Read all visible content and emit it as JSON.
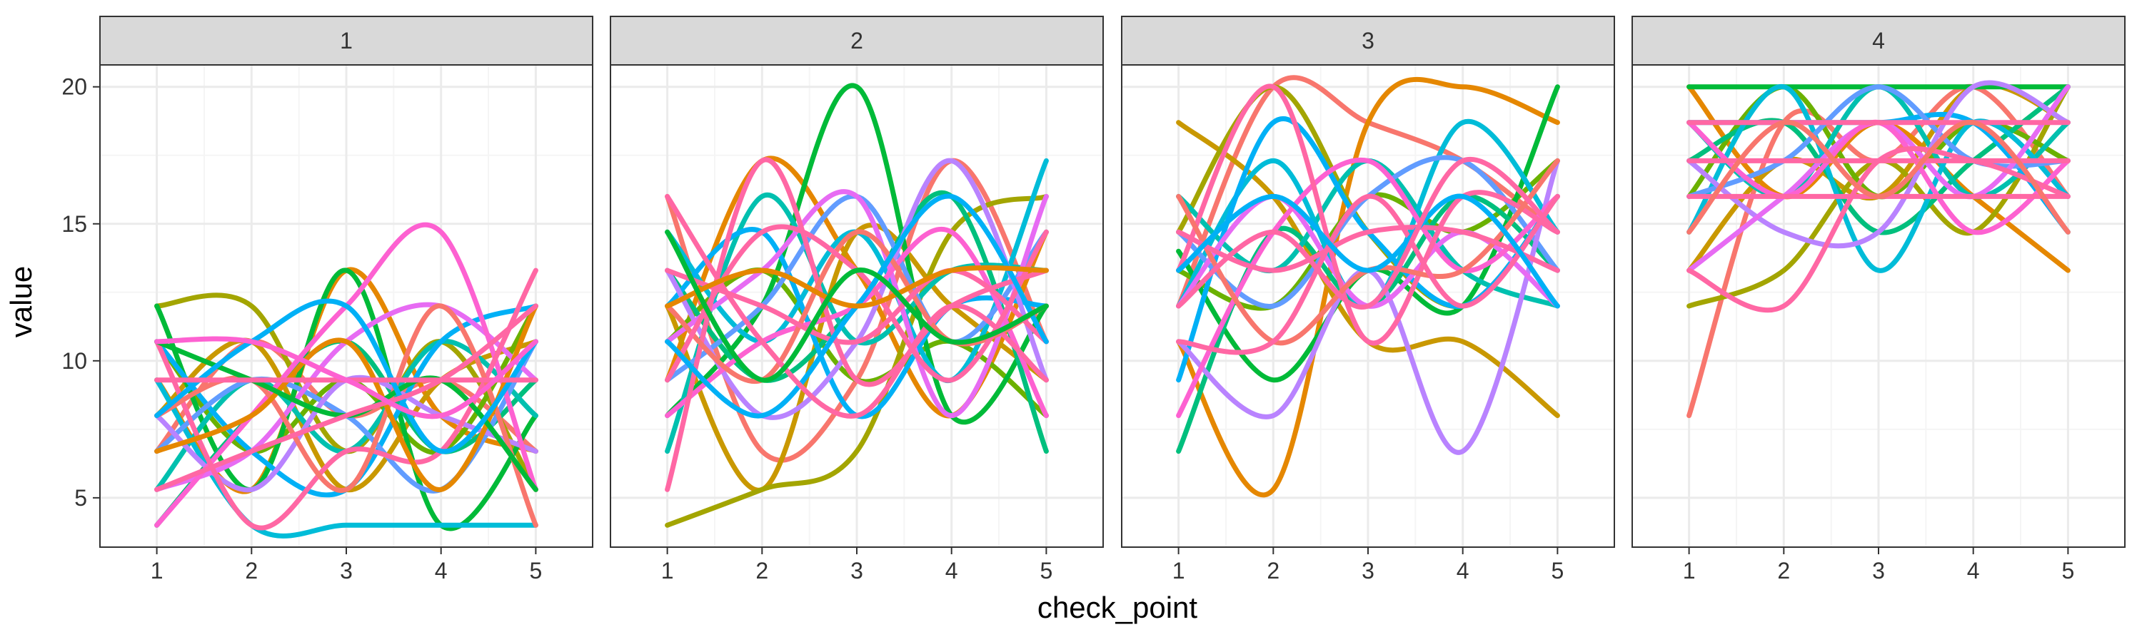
{
  "chart_data": {
    "type": "line",
    "facet_by": "group",
    "panels": [
      {
        "label": "1",
        "x": [
          1,
          2,
          3,
          4,
          5
        ],
        "series": [
          {
            "color": "#F8766D",
            "values": [
              6.7,
              10.7,
              8.0,
              9.3,
              6.7
            ]
          },
          {
            "color": "#E58700",
            "values": [
              9.3,
              5.3,
              13.3,
              8.0,
              6.7
            ]
          },
          {
            "color": "#C99800",
            "values": [
              8.0,
              10.7,
              5.3,
              9.3,
              10.7
            ]
          },
          {
            "color": "#A3A500",
            "values": [
              12.0,
              12.0,
              6.7,
              10.7,
              5.3
            ]
          },
          {
            "color": "#6BB100",
            "values": [
              10.7,
              6.7,
              9.3,
              6.7,
              12.0
            ]
          },
          {
            "color": "#00BA38",
            "values": [
              12.0,
              5.3,
              13.3,
              4.0,
              8.0
            ]
          },
          {
            "color": "#00BF7D",
            "values": [
              4.0,
              8.0,
              10.7,
              6.7,
              9.3
            ]
          },
          {
            "color": "#00C0AF",
            "values": [
              5.3,
              9.3,
              6.7,
              10.7,
              8.0
            ]
          },
          {
            "color": "#00BCD8",
            "values": [
              9.3,
              4.0,
              4.0,
              4.0,
              4.0
            ]
          },
          {
            "color": "#00B0F6",
            "values": [
              10.7,
              6.7,
              5.3,
              10.7,
              12.0
            ]
          },
          {
            "color": "#619CFF",
            "values": [
              6.7,
              9.3,
              8.0,
              5.3,
              10.7
            ]
          },
          {
            "color": "#B983FF",
            "values": [
              8.0,
              5.3,
              9.3,
              8.0,
              6.7
            ]
          },
          {
            "color": "#E76BF3",
            "values": [
              5.3,
              6.7,
              10.7,
              12.0,
              9.3
            ]
          },
          {
            "color": "#FD61D1",
            "values": [
              4.0,
              8.0,
              12.0,
              14.7,
              5.3
            ]
          },
          {
            "color": "#FF67A4",
            "values": [
              10.7,
              4.0,
              6.7,
              6.7,
              13.3
            ]
          },
          {
            "color": "#F8766D",
            "values": [
              8.0,
              9.3,
              5.3,
              12.0,
              4.0
            ]
          },
          {
            "color": "#E58700",
            "values": [
              6.7,
              8.0,
              10.7,
              5.3,
              12.0
            ]
          },
          {
            "color": "#00BA38",
            "values": [
              10.7,
              9.3,
              8.0,
              9.3,
              5.3
            ]
          },
          {
            "color": "#00B0F6",
            "values": [
              8.0,
              10.7,
              12.0,
              6.7,
              10.7
            ]
          },
          {
            "color": "#FF67A4",
            "values": [
              5.3,
              6.7,
              8.0,
              9.3,
              12.0
            ]
          },
          {
            "color": "#FF67A4",
            "values": [
              9.3,
              9.3,
              9.3,
              9.3,
              9.3
            ]
          },
          {
            "color": "#FD61D1",
            "values": [
              10.7,
              10.7,
              9.3,
              8.0,
              10.7
            ]
          }
        ]
      },
      {
        "label": "2",
        "x": [
          1,
          2,
          3,
          4,
          5
        ],
        "series": [
          {
            "color": "#F8766D",
            "values": [
              16.0,
              6.7,
              9.3,
              17.3,
              10.7
            ]
          },
          {
            "color": "#E58700",
            "values": [
              9.3,
              17.3,
              13.3,
              8.0,
              14.7
            ]
          },
          {
            "color": "#C99800",
            "values": [
              12.0,
              5.3,
              14.7,
              12.0,
              9.3
            ]
          },
          {
            "color": "#A3A500",
            "values": [
              4.0,
              5.3,
              6.7,
              14.7,
              16.0
            ]
          },
          {
            "color": "#6BB100",
            "values": [
              10.7,
              13.3,
              9.3,
              10.7,
              8.0
            ]
          },
          {
            "color": "#00BA38",
            "values": [
              8.0,
              12.0,
              20.0,
              8.0,
              12.0
            ]
          },
          {
            "color": "#00BF7D",
            "values": [
              13.3,
              9.3,
              12.0,
              16.0,
              6.7
            ]
          },
          {
            "color": "#00C0AF",
            "values": [
              6.7,
              16.0,
              10.7,
              13.3,
              13.3
            ]
          },
          {
            "color": "#00BCD8",
            "values": [
              14.7,
              10.7,
              14.7,
              9.3,
              17.3
            ]
          },
          {
            "color": "#00B0F6",
            "values": [
              12.0,
              14.7,
              8.0,
              12.0,
              12.0
            ]
          },
          {
            "color": "#619CFF",
            "values": [
              9.3,
              12.0,
              16.0,
              10.7,
              14.7
            ]
          },
          {
            "color": "#B983FF",
            "values": [
              13.3,
              8.0,
              10.7,
              17.3,
              9.3
            ]
          },
          {
            "color": "#E76BF3",
            "values": [
              10.7,
              13.3,
              16.0,
              8.0,
              16.0
            ]
          },
          {
            "color": "#FD61D1",
            "values": [
              8.0,
              10.7,
              12.0,
              14.7,
              8.0
            ]
          },
          {
            "color": "#FF67A4",
            "values": [
              5.3,
              17.3,
              9.3,
              12.0,
              13.3
            ]
          },
          {
            "color": "#F8766D",
            "values": [
              12.0,
              9.3,
              14.7,
              10.7,
              12.0
            ]
          },
          {
            "color": "#FF67A4",
            "values": [
              13.3,
              12.0,
              10.7,
              13.3,
              10.7
            ]
          },
          {
            "color": "#FF67A4",
            "values": [
              9.3,
              14.7,
              13.3,
              9.3,
              14.7
            ]
          },
          {
            "color": "#00B0F6",
            "values": [
              10.7,
              8.0,
              12.0,
              16.0,
              10.7
            ]
          },
          {
            "color": "#FF67A4",
            "values": [
              16.0,
              10.7,
              8.0,
              12.0,
              9.3
            ]
          },
          {
            "color": "#E58700",
            "values": [
              12.0,
              13.3,
              12.0,
              13.3,
              13.3
            ]
          },
          {
            "color": "#00BA38",
            "values": [
              14.7,
              9.3,
              13.3,
              10.7,
              12.0
            ]
          }
        ]
      },
      {
        "label": "3",
        "x": [
          1,
          2,
          3,
          4,
          5
        ],
        "series": [
          {
            "color": "#F8766D",
            "values": [
              12.0,
              20.0,
              18.7,
              17.3,
              14.7
            ]
          },
          {
            "color": "#E58700",
            "values": [
              10.7,
              5.3,
              18.7,
              20.0,
              18.7
            ]
          },
          {
            "color": "#C99800",
            "values": [
              18.7,
              16.0,
              10.7,
              10.7,
              8.0
            ]
          },
          {
            "color": "#A3A500",
            "values": [
              14.7,
              20.0,
              14.7,
              12.0,
              16.0
            ]
          },
          {
            "color": "#6BB100",
            "values": [
              13.3,
              12.0,
              16.0,
              14.7,
              17.3
            ]
          },
          {
            "color": "#00BA38",
            "values": [
              14.0,
              9.3,
              13.3,
              12.0,
              20.0
            ]
          },
          {
            "color": "#00BF7D",
            "values": [
              6.7,
              14.7,
              12.0,
              16.0,
              13.3
            ]
          },
          {
            "color": "#00C0AF",
            "values": [
              16.0,
              13.3,
              17.3,
              13.3,
              12.0
            ]
          },
          {
            "color": "#00BCD8",
            "values": [
              12.0,
              17.3,
              12.0,
              18.7,
              14.7
            ]
          },
          {
            "color": "#00B0F6",
            "values": [
              9.3,
              18.7,
              14.7,
              12.0,
              16.0
            ]
          },
          {
            "color": "#619CFF",
            "values": [
              14.7,
              12.0,
              16.0,
              17.3,
              13.3
            ]
          },
          {
            "color": "#B983FF",
            "values": [
              10.7,
              8.0,
              13.3,
              6.7,
              17.3
            ]
          },
          {
            "color": "#E76BF3",
            "values": [
              12.0,
              16.0,
              12.0,
              14.7,
              12.0
            ]
          },
          {
            "color": "#FD61D1",
            "values": [
              8.0,
              14.7,
              17.3,
              13.3,
              16.0
            ]
          },
          {
            "color": "#FF67A4",
            "values": [
              13.3,
              20.0,
              10.7,
              16.0,
              14.7
            ]
          },
          {
            "color": "#F8766D",
            "values": [
              16.0,
              10.7,
              13.3,
              13.3,
              17.3
            ]
          },
          {
            "color": "#FF67A4",
            "values": [
              14.7,
              13.3,
              14.7,
              14.7,
              13.3
            ]
          },
          {
            "color": "#FF67A4",
            "values": [
              10.7,
              10.7,
              16.0,
              12.0,
              16.0
            ]
          },
          {
            "color": "#00B0F6",
            "values": [
              13.3,
              16.0,
              13.3,
              16.0,
              12.0
            ]
          },
          {
            "color": "#FF67A4",
            "values": [
              12.0,
              14.7,
              12.0,
              17.3,
              14.7
            ]
          }
        ]
      },
      {
        "label": "4",
        "x": [
          1,
          2,
          3,
          4,
          5
        ],
        "series": [
          {
            "color": "#F8766D",
            "values": [
              8.0,
              18.7,
              17.3,
              20.0,
              16.0
            ]
          },
          {
            "color": "#E58700",
            "values": [
              20.0,
              16.0,
              18.7,
              16.0,
              13.3
            ]
          },
          {
            "color": "#C99800",
            "values": [
              13.3,
              17.3,
              16.0,
              20.0,
              18.7
            ]
          },
          {
            "color": "#A3A500",
            "values": [
              12.0,
              13.3,
              17.3,
              14.7,
              20.0
            ]
          },
          {
            "color": "#6BB100",
            "values": [
              16.0,
              20.0,
              16.0,
              18.7,
              17.3
            ]
          },
          {
            "color": "#00BA38",
            "values": [
              20.0,
              20.0,
              20.0,
              20.0,
              20.0
            ]
          },
          {
            "color": "#00BF7D",
            "values": [
              17.3,
              18.7,
              14.7,
              17.3,
              20.0
            ]
          },
          {
            "color": "#00C0AF",
            "values": [
              18.7,
              16.0,
              20.0,
              16.0,
              18.7
            ]
          },
          {
            "color": "#00BCD8",
            "values": [
              14.7,
              20.0,
              13.3,
              18.7,
              16.0
            ]
          },
          {
            "color": "#00B0F6",
            "values": [
              18.7,
              18.7,
              18.7,
              18.7,
              14.7
            ]
          },
          {
            "color": "#619CFF",
            "values": [
              16.0,
              17.3,
              20.0,
              17.3,
              17.3
            ]
          },
          {
            "color": "#B983FF",
            "values": [
              17.3,
              14.7,
              14.7,
              20.0,
              18.7
            ]
          },
          {
            "color": "#E76BF3",
            "values": [
              13.3,
              16.0,
              18.7,
              16.0,
              20.0
            ]
          },
          {
            "color": "#FD61D1",
            "values": [
              18.7,
              16.0,
              18.7,
              14.7,
              17.3
            ]
          },
          {
            "color": "#FF67A4",
            "values": [
              13.3,
              12.0,
              17.3,
              17.3,
              16.0
            ]
          },
          {
            "color": "#FF67A4",
            "values": [
              16.0,
              16.0,
              16.0,
              16.0,
              16.0
            ]
          },
          {
            "color": "#FF67A4",
            "values": [
              17.3,
              17.3,
              17.3,
              17.3,
              17.3
            ]
          },
          {
            "color": "#FF67A4",
            "values": [
              18.7,
              18.7,
              18.7,
              18.7,
              18.7
            ]
          },
          {
            "color": "#F8766D",
            "values": [
              14.7,
              18.7,
              16.0,
              18.7,
              14.7
            ]
          }
        ]
      }
    ],
    "xlabel": "check_point",
    "ylabel": "value",
    "x_ticks": [
      1,
      2,
      3,
      4,
      5
    ],
    "y_ticks": [
      5,
      10,
      15,
      20
    ],
    "xlim": [
      0.4,
      5.6
    ],
    "ylim": [
      3.2,
      20.8
    ],
    "grid": true,
    "legend": "none",
    "colors": {
      "panel_border": "#333333",
      "strip_fill": "#d9d9d9",
      "grid_major": "#ebebeb",
      "grid_minor": "#f5f5f5",
      "background": "#ffffff"
    }
  }
}
